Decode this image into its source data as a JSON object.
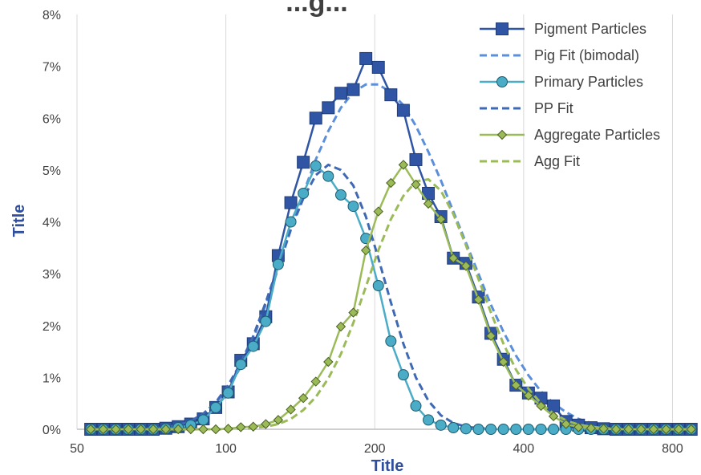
{
  "chart_data": {
    "type": "line",
    "title": "...g...",
    "xlabel": "Title",
    "ylabel": "Title",
    "x_scale": "log",
    "xlim": [
      50,
      900
    ],
    "ylim": [
      0,
      8
    ],
    "x_ticks": [
      50,
      100,
      200,
      400,
      800
    ],
    "x_tick_labels": [
      "50",
      "100",
      "200",
      "400",
      "800"
    ],
    "y_ticks": [
      0,
      1,
      2,
      3,
      4,
      5,
      6,
      7,
      8
    ],
    "y_tick_labels": [
      "0%",
      "1%",
      "2%",
      "3%",
      "4%",
      "5%",
      "6%",
      "7%",
      "8%"
    ],
    "grid": "vertical",
    "legend_position": "top-right",
    "x": [
      53.3,
      56.5,
      59.9,
      63.5,
      67.3,
      71.3,
      75.6,
      80.1,
      84.9,
      90.0,
      95.4,
      101.1,
      107.2,
      113.6,
      120.4,
      127.6,
      135.3,
      143.4,
      152.0,
      161.1,
      170.8,
      181.0,
      191.9,
      203.4,
      215.6,
      228.5,
      242.2,
      256.7,
      272.1,
      288.4,
      305.8,
      324.1,
      343.5,
      364.1,
      386.0,
      409.1,
      433.7,
      459.7,
      487.3,
      516.5,
      547.5,
      580.3,
      615.1,
      652.0,
      691.1,
      732.6,
      776.6,
      823.2,
      872.6
    ],
    "series": [
      {
        "name": "Pigment Particles",
        "color": "#2F55A4",
        "marker": "square",
        "dashed": false,
        "values": [
          0,
          0,
          0,
          0,
          0,
          0,
          0.02,
          0.05,
          0.1,
          0.2,
          0.42,
          0.72,
          1.33,
          1.65,
          2.17,
          3.35,
          4.37,
          5.15,
          6.0,
          6.2,
          6.48,
          6.55,
          7.15,
          6.98,
          6.45,
          6.15,
          5.2,
          4.55,
          4.1,
          3.3,
          3.2,
          2.55,
          1.85,
          1.35,
          0.85,
          0.7,
          0.6,
          0.45,
          0.15,
          0.08,
          0.03,
          0.01,
          0,
          0,
          0,
          0,
          0,
          0,
          0
        ]
      },
      {
        "name": "Pig Fit (bimodal)",
        "color": "#5B8FDB",
        "marker": "none",
        "dashed": true,
        "values": [
          0,
          0,
          0,
          0,
          0.01,
          0.02,
          0.04,
          0.08,
          0.15,
          0.28,
          0.5,
          0.8,
          1.2,
          1.75,
          2.4,
          3.1,
          3.85,
          4.55,
          5.2,
          5.75,
          6.2,
          6.5,
          6.65,
          6.65,
          6.5,
          6.25,
          5.85,
          5.35,
          4.8,
          4.2,
          3.6,
          3.0,
          2.4,
          1.88,
          1.42,
          1.04,
          0.73,
          0.5,
          0.33,
          0.2,
          0.12,
          0.07,
          0.04,
          0.02,
          0.01,
          0,
          0,
          0,
          0
        ]
      },
      {
        "name": "Primary Particles",
        "color": "#4AACC6",
        "marker": "circle",
        "dashed": false,
        "values": [
          0,
          0,
          0,
          0,
          0,
          0,
          0.01,
          0.03,
          0.08,
          0.18,
          0.42,
          0.7,
          1.25,
          1.6,
          2.08,
          3.18,
          4.0,
          4.55,
          5.08,
          4.88,
          4.52,
          4.3,
          3.68,
          2.77,
          1.7,
          1.05,
          0.45,
          0.18,
          0.08,
          0.03,
          0.01,
          0,
          0,
          0,
          0,
          0,
          0,
          0,
          0,
          0,
          0,
          0,
          0,
          0,
          0,
          0,
          0,
          0,
          0
        ]
      },
      {
        "name": "PP Fit",
        "color": "#3F68B5",
        "marker": "none",
        "dashed": true,
        "values": [
          0,
          0,
          0,
          0,
          0.01,
          0.02,
          0.04,
          0.08,
          0.16,
          0.3,
          0.52,
          0.85,
          1.28,
          1.8,
          2.45,
          3.15,
          3.85,
          4.45,
          4.9,
          5.1,
          5.0,
          4.7,
          4.1,
          3.3,
          2.45,
          1.65,
          1.0,
          0.55,
          0.27,
          0.12,
          0.05,
          0.02,
          0.01,
          0,
          0,
          0,
          0,
          0,
          0,
          0,
          0,
          0,
          0,
          0,
          0,
          0,
          0,
          0,
          0
        ]
      },
      {
        "name": "Aggregate Particles",
        "color": "#9BBB59",
        "marker": "diamond",
        "dashed": false,
        "values": [
          0,
          0,
          0,
          0,
          0,
          0,
          0,
          0,
          0,
          0,
          0,
          0.01,
          0.04,
          0.05,
          0.1,
          0.18,
          0.38,
          0.6,
          0.92,
          1.3,
          1.98,
          2.25,
          3.45,
          4.2,
          4.75,
          5.1,
          4.72,
          4.35,
          4.05,
          3.3,
          3.15,
          2.5,
          1.8,
          1.3,
          0.85,
          0.65,
          0.45,
          0.25,
          0.1,
          0.04,
          0.02,
          0.01,
          0,
          0,
          0,
          0,
          0,
          0,
          0
        ]
      },
      {
        "name": "Agg Fit",
        "color": "#9BBB59",
        "marker": "none",
        "dashed": true,
        "values": [
          0,
          0,
          0,
          0,
          0,
          0,
          0,
          0,
          0,
          0,
          0,
          0,
          0.01,
          0.02,
          0.05,
          0.1,
          0.2,
          0.37,
          0.62,
          0.98,
          1.45,
          2.05,
          2.75,
          3.45,
          4.05,
          4.5,
          4.78,
          4.82,
          4.6,
          4.15,
          3.55,
          2.9,
          2.25,
          1.65,
          1.15,
          0.78,
          0.5,
          0.3,
          0.17,
          0.09,
          0.05,
          0.02,
          0.01,
          0,
          0,
          0,
          0,
          0,
          0
        ]
      }
    ]
  }
}
